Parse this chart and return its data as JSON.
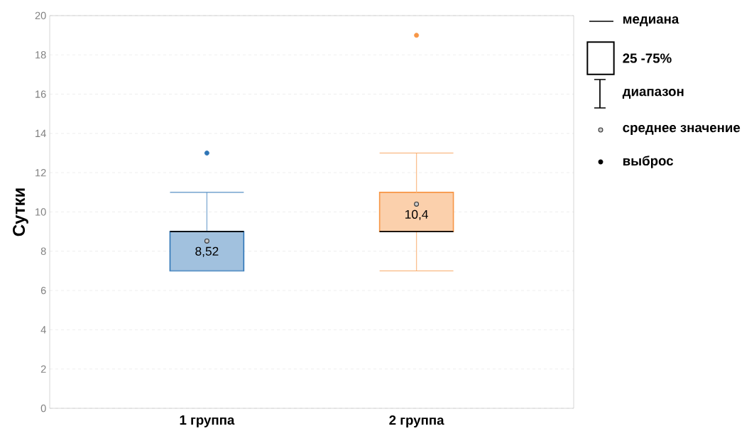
{
  "chart_data": {
    "type": "box",
    "ylabel": "Сутки",
    "categories": [
      "1 группа",
      "2 группа"
    ],
    "colors": [
      "#2e75b6",
      "#f79646"
    ],
    "boxes": [
      {
        "low": 7,
        "q1": 7,
        "median": 9,
        "q3": 9,
        "high": 11,
        "mean": 8.52,
        "outliers": [
          13
        ]
      },
      {
        "low": 7,
        "q1": 9,
        "median": 9,
        "q3": 11,
        "high": 13,
        "mean": 10.4,
        "outliers": [
          19
        ]
      }
    ],
    "ylim": [
      0,
      20
    ],
    "yticks": [
      0,
      2,
      4,
      6,
      8,
      10,
      12,
      14,
      16,
      18,
      20
    ],
    "grid": "y",
    "annotations": [
      "8,52",
      "10,4",
      "медиана",
      "25 -75%",
      "диапазон",
      "среднее значение",
      "выброс"
    ]
  }
}
